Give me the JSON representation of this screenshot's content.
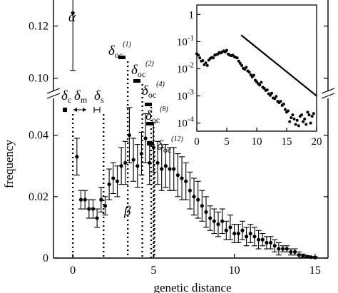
{
  "chart_data": [
    {
      "type": "scatter",
      "xlabel": "genetic distance",
      "ylabel": "frequency",
      "xlim": [
        -1.2,
        15.8
      ],
      "ylim_lower": [
        0,
        0.052
      ],
      "ylim_upper": [
        0.095,
        0.13
      ],
      "broken_y_axis": true,
      "x_ticks": [
        0,
        5,
        10,
        15
      ],
      "y_ticks": [
        0,
        0.02,
        0.04,
        0.1,
        0.12
      ],
      "x_tick_labels": [
        "0",
        "5",
        "10",
        "15"
      ],
      "y_tick_labels": [
        "0",
        "0.02",
        "0.04",
        "0.10",
        "0.12"
      ],
      "series": [
        {
          "x": [
            0.25,
            0.5,
            0.75,
            1.0,
            1.25,
            1.5,
            1.75,
            2.0,
            2.25,
            2.5,
            2.75,
            3.0,
            3.25,
            3.5,
            3.75,
            4.0,
            4.25,
            4.5,
            4.75,
            5.0,
            5.25,
            5.5,
            5.75,
            6.0,
            6.25,
            6.5,
            6.75,
            7.0,
            7.25,
            7.5,
            7.75,
            8.0,
            8.25,
            8.5,
            8.75,
            9.0,
            9.25,
            9.5,
            9.75,
            10.0,
            10.25,
            10.5,
            10.75,
            11.0,
            11.25,
            11.5,
            11.75,
            12.0,
            12.25,
            12.5,
            12.75,
            13.0,
            13.25,
            13.5,
            13.75,
            14.0,
            14.25,
            14.5,
            14.75,
            15.0
          ],
          "y": [
            0.033,
            0.019,
            0.019,
            0.016,
            0.016,
            0.013,
            0.019,
            0.017,
            0.024,
            0.026,
            0.025,
            0.03,
            0.031,
            0.04,
            0.032,
            0.03,
            0.034,
            0.039,
            0.031,
            0.036,
            0.031,
            0.029,
            0.03,
            0.029,
            0.029,
            0.027,
            0.026,
            0.025,
            0.022,
            0.02,
            0.019,
            0.017,
            0.015,
            0.013,
            0.012,
            0.011,
            0.012,
            0.009,
            0.01,
            0.008,
            0.008,
            0.009,
            0.007,
            0.008,
            0.007,
            0.006,
            0.006,
            0.005,
            0.005,
            0.004,
            0.003,
            0.003,
            0.003,
            0.002,
            0.002,
            0.001,
            0.0008,
            0.0005,
            0.0003,
            0.0002
          ],
          "err": [
            0.006,
            0.003,
            0.003,
            0.003,
            0.003,
            0.003,
            0.004,
            0.003,
            0.005,
            0.005,
            0.005,
            0.006,
            0.007,
            0.009,
            0.007,
            0.007,
            0.007,
            0.008,
            0.007,
            0.008,
            0.007,
            0.007,
            0.007,
            0.007,
            0.007,
            0.007,
            0.007,
            0.006,
            0.006,
            0.006,
            0.006,
            0.005,
            0.005,
            0.004,
            0.004,
            0.004,
            0.004,
            0.003,
            0.004,
            0.003,
            0.003,
            0.003,
            0.003,
            0.003,
            0.003,
            0.003,
            0.002,
            0.002,
            0.002,
            0.002,
            0.002,
            0.001,
            0.001,
            0.001,
            0.001,
            0.001,
            0.0005,
            0.0003,
            0.0002,
            0.0002
          ]
        },
        {
          "x": [
            0
          ],
          "y": [
            0.125
          ],
          "err": [
            0.022
          ]
        }
      ],
      "vertical_markers": [
        0,
        1.9,
        3.4,
        4.3,
        4.85,
        5.0,
        5.05
      ],
      "annotations": {
        "alpha": "α",
        "beta": "β",
        "delta_c": {
          "base": "δ",
          "sub": "c"
        },
        "delta_m": {
          "base": "δ",
          "sub": "m"
        },
        "delta_s": {
          "base": "δ",
          "sub": "s"
        },
        "delta_oc1": {
          "base": "δ",
          "sub": "oc",
          "sup": "(1)"
        },
        "delta_oc2": {
          "base": "δ",
          "sub": "oc",
          "sup": "(2)"
        },
        "delta_oc4": {
          "base": "δ",
          "sub": "oc",
          "sup": "(4)"
        },
        "delta_oc8": {
          "base": "δ",
          "sub": "oc",
          "sup": "(8)"
        },
        "delta_oc12": {
          "base": "δ",
          "sub": "oc",
          "sup": "(12)"
        }
      }
    },
    {
      "type": "scatter",
      "y_scale": "log",
      "xlim": [
        0,
        20
      ],
      "ylim_log10": [
        -4.3,
        0.35
      ],
      "x_ticks": [
        0,
        5,
        10,
        15,
        20
      ],
      "x_tick_labels": [
        "0",
        "5",
        "10",
        "15",
        "20"
      ],
      "y_ticks_log10": [
        0,
        -1,
        -2,
        -3,
        -4
      ],
      "y_tick_labels": [
        {
          "base": "1",
          "exp": ""
        },
        {
          "base": "10",
          "exp": "-1"
        },
        {
          "base": "10",
          "exp": "-2"
        },
        {
          "base": "10",
          "exp": "-3"
        },
        {
          "base": "10",
          "exp": "-4"
        }
      ],
      "series": [
        {
          "x": [
            0,
            0.25,
            0.5,
            0.75,
            1.0,
            1.25,
            1.5,
            1.75,
            2.0,
            2.25,
            2.5,
            2.75,
            3.0,
            3.25,
            3.5,
            3.75,
            4.0,
            4.25,
            4.5,
            4.75,
            5.0,
            5.25,
            5.5,
            5.75,
            6.0,
            6.25,
            6.5,
            6.75,
            7.0,
            7.25,
            7.5,
            7.75,
            8.0,
            8.25,
            8.5,
            8.75,
            9.0,
            9.25,
            9.5,
            9.75,
            10.0,
            10.25,
            10.5,
            10.75,
            11.0,
            11.25,
            11.5,
            11.75,
            12.0,
            12.25,
            12.5,
            12.75,
            13.0,
            13.25,
            13.5,
            13.75,
            14.0,
            14.25,
            14.5,
            14.75,
            15.0,
            15.25,
            15.5,
            15.75,
            16.0,
            16.25,
            16.5,
            16.75,
            17.0,
            17.25,
            17.5,
            17.75,
            18.0,
            18.25,
            18.5,
            18.75,
            19.0,
            19.25,
            19.5
          ],
          "y_log10": [
            -1.45,
            -1.5,
            -1.6,
            -1.72,
            -1.7,
            -1.85,
            -1.78,
            -1.88,
            -1.68,
            -1.62,
            -1.58,
            -1.6,
            -1.5,
            -1.48,
            -1.46,
            -1.4,
            -1.42,
            -1.38,
            -1.34,
            -1.38,
            -1.32,
            -1.46,
            -1.5,
            -1.52,
            -1.5,
            -1.55,
            -1.58,
            -1.6,
            -1.72,
            -1.8,
            -1.88,
            -1.98,
            -2.02,
            -1.95,
            -2.08,
            -2.12,
            -2.22,
            -2.3,
            -2.24,
            -2.42,
            -2.48,
            -2.55,
            -2.6,
            -2.5,
            -2.68,
            -2.72,
            -2.8,
            -2.78,
            -2.92,
            -2.98,
            -2.9,
            -3.08,
            -3.1,
            -3.02,
            -3.2,
            -3.25,
            -3.2,
            -3.35,
            -3.3,
            -3.5,
            -3.6,
            -3.55,
            -3.95,
            -3.8,
            -3.7,
            -3.85,
            -4.05,
            -3.9,
            -4.1,
            -3.75,
            -3.7,
            -3.95,
            -3.85,
            -4.05,
            -3.6,
            -3.7,
            -4.0,
            -3.75,
            -3.65
          ]
        }
      ],
      "power_law_line": {
        "x": [
          7.4,
          20
        ],
        "y_log10": [
          -0.76,
          -3.0
        ]
      }
    }
  ]
}
